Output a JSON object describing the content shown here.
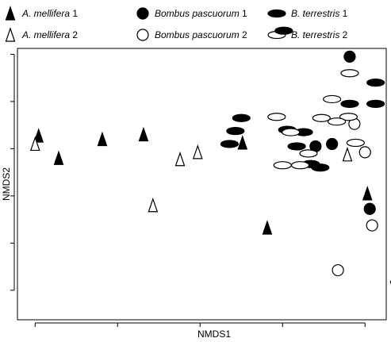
{
  "chart_data": {
    "type": "scatter",
    "xlabel": "NMDS1",
    "ylabel": "NMDS2",
    "xlim": [
      -1.55,
      1.58
    ],
    "ylim": [
      -1.25,
      1.05
    ],
    "x_ticks": [
      -1.4,
      -0.7,
      0.0,
      0.7,
      1.4
    ],
    "y_ticks": [
      -1.0,
      -0.6,
      -0.2,
      0.2,
      0.6,
      1.0
    ],
    "tick_labels_shown": false,
    "grid": false,
    "legend_position": "top",
    "series": [
      {
        "name_italic": "A. mellifera",
        "name_suffix": " 1",
        "marker": "triangle-filled",
        "points": [
          [
            -1.37,
            0.31
          ],
          [
            -1.2,
            0.12
          ],
          [
            -0.83,
            0.28
          ],
          [
            -0.48,
            0.32
          ],
          [
            0.36,
            0.25
          ],
          [
            0.57,
            -0.47
          ],
          [
            1.42,
            -0.18
          ]
        ]
      },
      {
        "name_italic": "A. mellifera",
        "name_suffix": " 2",
        "marker": "triangle-open",
        "points": [
          [
            -1.4,
            0.24
          ],
          [
            -0.4,
            -0.28
          ],
          [
            -0.17,
            0.11
          ],
          [
            -0.02,
            0.17
          ],
          [
            1.25,
            0.15
          ]
        ]
      },
      {
        "name_italic": "Bombus pascuorum",
        "name_suffix": " 1",
        "marker": "circle-filled",
        "points": [
          [
            0.98,
            0.22
          ],
          [
            1.12,
            0.24
          ],
          [
            1.27,
            0.98
          ],
          [
            1.44,
            -0.31
          ]
        ]
      },
      {
        "name_italic": "Bombus pascuorum",
        "name_suffix": " 2",
        "marker": "circle-open",
        "points": [
          [
            1.31,
            0.41
          ],
          [
            1.4,
            0.17
          ],
          [
            1.46,
            -0.45
          ],
          [
            1.17,
            -0.83
          ]
        ]
      },
      {
        "name_italic": "B. terrestris",
        "name_suffix": " 1",
        "marker": "ellipse-filled",
        "points": [
          [
            0.71,
            1.2
          ],
          [
            0.35,
            0.46
          ],
          [
            0.3,
            0.35
          ],
          [
            0.25,
            0.24
          ],
          [
            0.74,
            0.36
          ],
          [
            0.88,
            0.34
          ],
          [
            0.82,
            0.22
          ],
          [
            0.94,
            0.07
          ],
          [
            1.27,
            0.58
          ],
          [
            1.49,
            0.76
          ],
          [
            1.49,
            0.58
          ],
          [
            1.69,
            -0.93
          ],
          [
            1.02,
            0.04
          ]
        ]
      },
      {
        "name_italic": "B. terrestris",
        "name_suffix": " 2",
        "marker": "ellipse-open",
        "points": [
          [
            0.65,
            0.47
          ],
          [
            1.03,
            0.46
          ],
          [
            1.12,
            0.62
          ],
          [
            1.27,
            0.84
          ],
          [
            1.26,
            0.47
          ],
          [
            1.16,
            0.43
          ],
          [
            1.32,
            0.25
          ],
          [
            0.92,
            0.16
          ],
          [
            0.7,
            0.06
          ],
          [
            0.85,
            0.06
          ],
          [
            0.77,
            0.34
          ]
        ]
      }
    ]
  }
}
